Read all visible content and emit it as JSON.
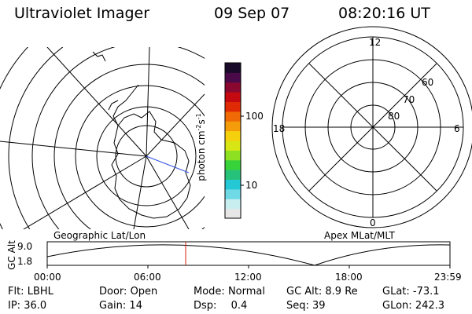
{
  "header": {
    "title": "Ultraviolet Imager",
    "date": "09 Sep 07",
    "time": "08:20:16 UT"
  },
  "colorbar": {
    "unit": "photon cm",
    "unit_sup1": "-2",
    "unit_mid": "s",
    "unit_sup2": "-1",
    "ticks": [
      {
        "value": 100,
        "label": "100"
      },
      {
        "value": 10,
        "label": "10"
      }
    ],
    "colors": [
      "#e6e6e6",
      "#c8eef0",
      "#6fd9e6",
      "#25c9d6",
      "#27c27a",
      "#38d23a",
      "#8ee022",
      "#d7e614",
      "#f5d00c",
      "#f59c0a",
      "#f06a06",
      "#e02a06",
      "#c40a10",
      "#8a0830",
      "#4a0a4a",
      "#1a0a2a"
    ]
  },
  "geographic_panel": {
    "label": "Geographic Lat/Lon"
  },
  "apex_panel": {
    "label": "Apex MLat/MLT",
    "mlt_labels": {
      "top": "12",
      "bottom": "0",
      "left": "18",
      "right": "6"
    },
    "lat_labels": [
      "60",
      "70",
      "80"
    ]
  },
  "altitude_strip": {
    "axis_label": "GC Alt",
    "y_ticks": [
      "9.0",
      "1.8"
    ],
    "x_ticks": [
      "00:00",
      "06:00",
      "12:00",
      "18:00",
      "23:59"
    ],
    "cursor_time": "08:20"
  },
  "info": {
    "flt_label": "Flt:",
    "flt_value": "LBHL",
    "ip_label": "IP:",
    "ip_value": "36.0",
    "door_label": "Door:",
    "door_value": "Open",
    "gain_label": "Gain:",
    "gain_value": "14",
    "mode_label": "Mode:",
    "mode_value": "Normal",
    "dsp_label": "Dsp:",
    "dsp_value": "0.4",
    "gcalt_label": "GC Alt:",
    "gcalt_value": "8.9 Re",
    "seq_label": "Seq:",
    "seq_value": "39",
    "glat_label": "GLat:",
    "glat_value": "-73.1",
    "glon_label": "GLon:",
    "glon_value": "242.3"
  }
}
